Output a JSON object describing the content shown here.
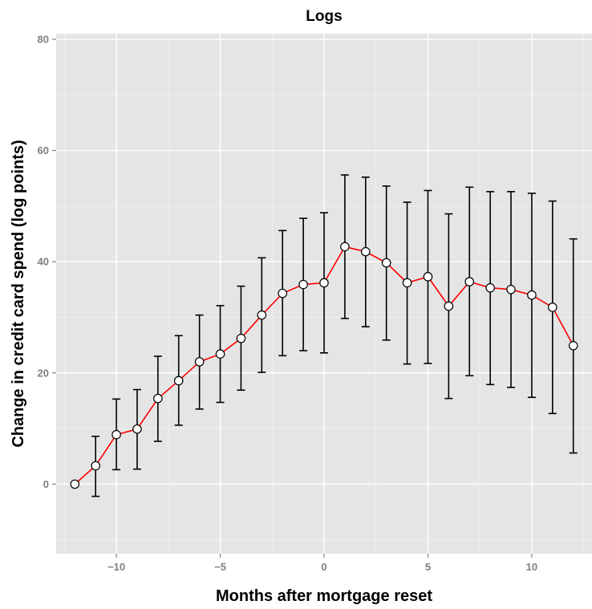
{
  "chart_data": {
    "type": "line",
    "title": "Logs",
    "xlabel": "Months after mortgage reset",
    "ylabel": "Change in credit card spend (log points)",
    "xlim": [
      -12.9,
      12.9
    ],
    "ylim": [
      -12.5,
      81
    ],
    "x_ticks": [
      -10,
      -5,
      0,
      5,
      10
    ],
    "x_tick_labels": [
      "−10",
      "−5",
      "0",
      "5",
      "10"
    ],
    "y_ticks": [
      0,
      20,
      40,
      60,
      80
    ],
    "y_tick_labels": [
      "0",
      "20",
      "40",
      "60",
      "80"
    ],
    "grid": true,
    "colors": {
      "panel": "#e5e5e5",
      "grid_major": "#ffffff",
      "grid_minor": "#f2f2f2",
      "line": "#ff0000",
      "errorbar": "#000000",
      "point_fill": "#ffffff",
      "point_stroke": "#000000"
    },
    "series": [
      {
        "x": [
          -12,
          -11,
          -10,
          -9,
          -8,
          -7,
          -6,
          -5,
          -4,
          -3,
          -2,
          -1,
          0,
          1,
          2,
          3,
          4,
          5,
          6,
          7,
          8,
          9,
          10,
          11,
          12
        ],
        "y": [
          0,
          3.3,
          8.9,
          9.9,
          15.4,
          18.6,
          22.0,
          23.4,
          26.2,
          30.4,
          34.3,
          35.9,
          36.2,
          42.7,
          41.8,
          39.8,
          36.2,
          37.3,
          32.0,
          36.4,
          35.3,
          35.0,
          34.0,
          31.8,
          24.9
        ],
        "ymin": [
          null,
          -2.2,
          2.6,
          2.7,
          7.7,
          10.6,
          13.5,
          14.7,
          16.9,
          20.1,
          23.1,
          24.0,
          23.6,
          29.8,
          28.3,
          25.9,
          21.6,
          21.7,
          15.4,
          19.5,
          17.9,
          17.4,
          15.6,
          12.7,
          5.6
        ],
        "ymax": [
          null,
          8.6,
          15.3,
          17.0,
          23.0,
          26.7,
          30.4,
          32.1,
          35.6,
          40.7,
          45.6,
          47.8,
          48.8,
          55.6,
          55.2,
          53.6,
          50.7,
          52.8,
          48.6,
          53.4,
          52.6,
          52.6,
          52.3,
          50.9,
          44.1
        ]
      }
    ]
  }
}
